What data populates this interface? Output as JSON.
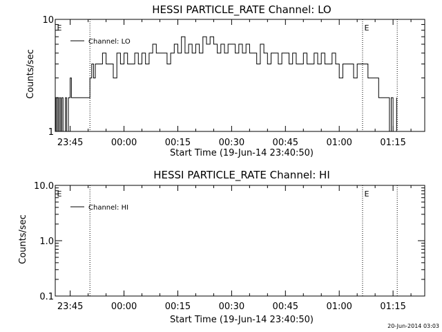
{
  "stamp": "20-Jun-2014 03:03",
  "chart_data": [
    {
      "type": "line",
      "title": "HESSI PARTICLE_RATE Channel: LO",
      "xlabel": "Start Time (19-Jun-14 23:40:50)",
      "ylabel": "Counts/sec",
      "yscale": "log",
      "ylim": [
        1,
        10
      ],
      "ytick_values": [
        1,
        10
      ],
      "ytick_labels": [
        "1",
        "10"
      ],
      "xlim": [
        "23:40:50",
        "01:23:50"
      ],
      "xtick_times": [
        "23:45",
        "00:00",
        "00:15",
        "00:30",
        "00:45",
        "01:00",
        "01:15"
      ],
      "event_lines": [
        "23:50:30",
        "01:06:30",
        "01:16:10"
      ],
      "event_markers": [
        {
          "time": "23:40:50",
          "label": "E"
        },
        {
          "time": "01:06:30",
          "label": "E"
        }
      ],
      "legend": "top-left",
      "grid": false,
      "series": [
        {
          "name": "Channel: LO",
          "x": [
            "23:40:50",
            "23:41:00",
            "23:41:20",
            "23:41:40",
            "23:42:00",
            "23:42:20",
            "23:42:40",
            "23:43:00",
            "23:43:20",
            "23:43:40",
            "23:44:00",
            "23:44:30",
            "23:45:00",
            "23:45:20",
            "23:45:40",
            "23:46:00",
            "23:46:20",
            "23:47:00",
            "23:48:00",
            "23:49:00",
            "23:50:00",
            "23:50:30",
            "23:51:00",
            "23:51:30",
            "23:52:00",
            "23:53:00",
            "23:54:00",
            "23:55:00",
            "23:56:00",
            "23:57:00",
            "23:58:00",
            "23:59:00",
            "00:00:00",
            "00:01:00",
            "00:02:00",
            "00:03:00",
            "00:04:00",
            "00:05:00",
            "00:06:00",
            "00:07:00",
            "00:08:00",
            "00:09:00",
            "00:10:00",
            "00:11:00",
            "00:12:00",
            "00:13:00",
            "00:14:00",
            "00:15:00",
            "00:16:00",
            "00:17:00",
            "00:18:00",
            "00:19:00",
            "00:20:00",
            "00:21:00",
            "00:22:00",
            "00:23:00",
            "00:24:00",
            "00:25:00",
            "00:26:00",
            "00:27:00",
            "00:28:00",
            "00:29:00",
            "00:30:00",
            "00:31:00",
            "00:32:00",
            "00:33:00",
            "00:34:00",
            "00:35:00",
            "00:36:00",
            "00:37:00",
            "00:38:00",
            "00:39:00",
            "00:40:00",
            "00:41:00",
            "00:42:00",
            "00:43:00",
            "00:44:00",
            "00:45:00",
            "00:46:00",
            "00:47:00",
            "00:48:00",
            "00:49:00",
            "00:50:00",
            "00:51:00",
            "00:52:00",
            "00:53:00",
            "00:54:00",
            "00:55:00",
            "00:56:00",
            "00:57:00",
            "00:58:00",
            "00:59:00",
            "01:00:00",
            "01:01:00",
            "01:02:00",
            "01:03:00",
            "01:04:00",
            "01:05:00",
            "01:06:00",
            "01:06:30",
            "01:07:00",
            "01:08:00",
            "01:09:00",
            "01:10:00",
            "01:11:00",
            "01:12:00",
            "01:13:00",
            "01:13:30",
            "01:14:00",
            "01:14:30",
            "01:15:00",
            "01:15:30",
            "01:16:00"
          ],
          "y": [
            2,
            1,
            2,
            1,
            2,
            1,
            2,
            1,
            1,
            2,
            1,
            2,
            3,
            2,
            2,
            2,
            2,
            2,
            2,
            2,
            2,
            3,
            4,
            3,
            4,
            4,
            5,
            4,
            4,
            3,
            5,
            4,
            5,
            4,
            4,
            5,
            4,
            5,
            4,
            5,
            6,
            5,
            5,
            5,
            4,
            5,
            6,
            5,
            7,
            5,
            6,
            5,
            6,
            5,
            7,
            6,
            7,
            6,
            5,
            6,
            5,
            6,
            6,
            5,
            6,
            5,
            6,
            5,
            5,
            4,
            6,
            5,
            4,
            5,
            5,
            4,
            5,
            5,
            4,
            5,
            4,
            4,
            5,
            4,
            4,
            5,
            4,
            5,
            4,
            4,
            5,
            4,
            3,
            4,
            4,
            4,
            3,
            4,
            4,
            4,
            4,
            3,
            3,
            3,
            2,
            2,
            2,
            2,
            1,
            2,
            1,
            1,
            2
          ]
        }
      ]
    },
    {
      "type": "line",
      "title": "HESSI PARTICLE_RATE Channel: HI",
      "xlabel": "Start Time (19-Jun-14 23:40:50)",
      "ylabel": "Counts/sec",
      "yscale": "log",
      "ylim": [
        0.1,
        10
      ],
      "ytick_values": [
        0.1,
        1,
        10
      ],
      "ytick_labels": [
        "0.1",
        "1.0",
        "10.0"
      ],
      "xlim": [
        "23:40:50",
        "01:23:50"
      ],
      "xtick_times": [
        "23:45",
        "00:00",
        "00:15",
        "00:30",
        "00:45",
        "01:00",
        "01:15"
      ],
      "event_lines": [
        "23:50:30",
        "01:06:30",
        "01:16:10"
      ],
      "event_markers": [
        {
          "time": "23:40:50",
          "label": "E"
        },
        {
          "time": "01:06:30",
          "label": "E"
        }
      ],
      "legend": "top-left",
      "grid": false,
      "series": [
        {
          "name": "Channel: HI",
          "x": [],
          "y": []
        }
      ]
    }
  ]
}
